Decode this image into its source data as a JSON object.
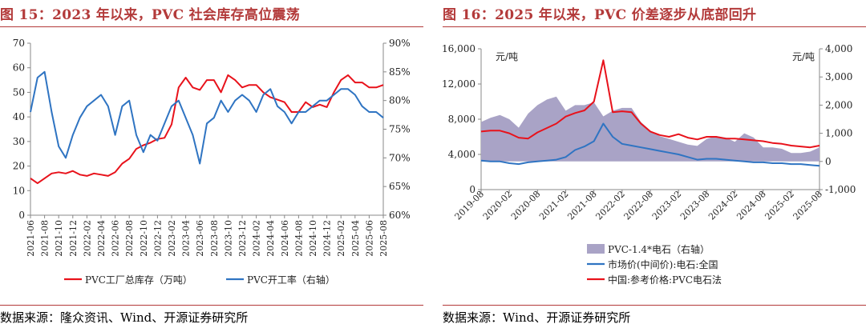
{
  "panels": [
    {
      "title": "图 15：2023 年以来，PVC 社会库存高位震荡",
      "source": "数据来源：隆众资讯、Wind、开源证券研究所"
    },
    {
      "title": "图 16：2025 年以来，PVC 价差逐步从底部回升",
      "source": "数据来源：Wind、开源证券研究所"
    }
  ],
  "colors": {
    "red": "#e8121b",
    "blue": "#2f74c2",
    "area": "#a9a3c6",
    "title": "#b33a3a"
  },
  "chart_data": [
    {
      "type": "line",
      "x_tick_labels": [
        "2021-06",
        "2021-08",
        "2021-10",
        "2021-12",
        "2022-02",
        "2022-04",
        "2022-06",
        "2022-08",
        "2022-10",
        "2022-12",
        "2023-02",
        "2023-04",
        "2023-06",
        "2023-08",
        "2023-10",
        "2023-12",
        "2024-02",
        "2024-04",
        "2024-06",
        "2024-08",
        "2024-10",
        "2024-12",
        "2025-02",
        "2025-04",
        "2025-06",
        "2025-08"
      ],
      "x_start": "2021-06",
      "x_end": "2025-08",
      "ylim_left": [
        0,
        70
      ],
      "y_ticks_left": [
        "0",
        "10",
        "20",
        "30",
        "40",
        "50",
        "60",
        "70"
      ],
      "ylim_right": [
        60,
        90
      ],
      "y_ticks_right": [
        "60%",
        "65%",
        "70%",
        "75%",
        "80%",
        "85%",
        "90%"
      ],
      "grid": false,
      "legend_position": "bottom",
      "series": [
        {
          "name": "PVC工厂总库存（万吨）",
          "axis": "left",
          "color": "#e8121b",
          "points": [
            [
              "2021-06",
              15
            ],
            [
              "2021-07",
              13
            ],
            [
              "2021-08",
              15
            ],
            [
              "2021-09",
              17
            ],
            [
              "2021-10",
              17.5
            ],
            [
              "2021-11",
              17
            ],
            [
              "2021-12",
              18
            ],
            [
              "2022-01",
              16.5
            ],
            [
              "2022-02",
              16
            ],
            [
              "2022-03",
              17
            ],
            [
              "2022-04",
              16.5
            ],
            [
              "2022-05",
              16
            ],
            [
              "2022-06",
              17.5
            ],
            [
              "2022-07",
              21
            ],
            [
              "2022-08",
              23
            ],
            [
              "2022-09",
              27
            ],
            [
              "2022-10",
              28.5
            ],
            [
              "2022-11",
              29.5
            ],
            [
              "2022-12",
              31
            ],
            [
              "2023-01",
              31.5
            ],
            [
              "2023-02",
              37
            ],
            [
              "2023-03",
              52
            ],
            [
              "2023-04",
              56
            ],
            [
              "2023-05",
              52
            ],
            [
              "2023-06",
              51
            ],
            [
              "2023-07",
              55
            ],
            [
              "2023-08",
              55
            ],
            [
              "2023-09",
              50
            ],
            [
              "2023-10",
              57
            ],
            [
              "2023-11",
              55
            ],
            [
              "2023-12",
              52
            ],
            [
              "2024-01",
              53
            ],
            [
              "2024-02",
              53
            ],
            [
              "2024-03",
              50
            ],
            [
              "2024-04",
              48
            ],
            [
              "2024-05",
              47
            ],
            [
              "2024-06",
              46
            ],
            [
              "2024-07",
              42
            ],
            [
              "2024-08",
              42
            ],
            [
              "2024-09",
              46
            ],
            [
              "2024-10",
              44
            ],
            [
              "2024-11",
              45
            ],
            [
              "2024-12",
              44
            ],
            [
              "2025-01",
              50
            ],
            [
              "2025-02",
              55
            ],
            [
              "2025-03",
              57
            ],
            [
              "2025-04",
              54
            ],
            [
              "2025-05",
              54
            ],
            [
              "2025-06",
              52
            ],
            [
              "2025-07",
              52
            ],
            [
              "2025-08",
              53
            ]
          ]
        },
        {
          "name": "PVC开工率（右轴）",
          "axis": "right",
          "color": "#2f74c2",
          "points": [
            [
              "2021-06",
              78
            ],
            [
              "2021-07",
              84
            ],
            [
              "2021-08",
              85
            ],
            [
              "2021-09",
              78
            ],
            [
              "2021-10",
              72
            ],
            [
              "2021-11",
              70
            ],
            [
              "2021-12",
              74
            ],
            [
              "2022-01",
              77
            ],
            [
              "2022-02",
              79
            ],
            [
              "2022-03",
              80
            ],
            [
              "2022-04",
              81
            ],
            [
              "2022-05",
              79
            ],
            [
              "2022-06",
              74
            ],
            [
              "2022-07",
              79
            ],
            [
              "2022-08",
              80
            ],
            [
              "2022-09",
              74
            ],
            [
              "2022-10",
              71
            ],
            [
              "2022-11",
              74
            ],
            [
              "2022-12",
              73
            ],
            [
              "2023-01",
              76
            ],
            [
              "2023-02",
              79
            ],
            [
              "2023-03",
              80
            ],
            [
              "2023-04",
              77
            ],
            [
              "2023-05",
              74
            ],
            [
              "2023-06",
              69
            ],
            [
              "2023-07",
              76
            ],
            [
              "2023-08",
              77
            ],
            [
              "2023-09",
              80
            ],
            [
              "2023-10",
              78
            ],
            [
              "2023-11",
              80
            ],
            [
              "2023-12",
              81
            ],
            [
              "2024-01",
              80
            ],
            [
              "2024-02",
              78
            ],
            [
              "2024-03",
              81
            ],
            [
              "2024-04",
              82
            ],
            [
              "2024-05",
              79
            ],
            [
              "2024-06",
              78
            ],
            [
              "2024-07",
              76
            ],
            [
              "2024-08",
              78
            ],
            [
              "2024-09",
              78
            ],
            [
              "2024-10",
              79
            ],
            [
              "2024-11",
              80
            ],
            [
              "2024-12",
              80
            ],
            [
              "2025-01",
              81
            ],
            [
              "2025-02",
              82
            ],
            [
              "2025-03",
              82
            ],
            [
              "2025-04",
              81
            ],
            [
              "2025-05",
              79
            ],
            [
              "2025-06",
              78
            ],
            [
              "2025-07",
              78
            ],
            [
              "2025-08",
              77
            ]
          ]
        }
      ]
    },
    {
      "type": "area",
      "x_tick_labels": [
        "2019-08",
        "2020-02",
        "2020-08",
        "2021-02",
        "2021-08",
        "2022-02",
        "2022-08",
        "2023-02",
        "2023-08",
        "2024-02",
        "2024-08",
        "2025-02",
        "2025-08"
      ],
      "x_start": "2019-08",
      "x_end": "2025-08",
      "ylim_left": [
        0,
        16000
      ],
      "y_ticks_left": [
        "0",
        "4,000",
        "8,000",
        "12,000",
        "16,000"
      ],
      "ylim_right": [
        -1000,
        4000
      ],
      "y_ticks_right": [
        "-1,000",
        "0",
        "1,000",
        "2,000",
        "3,000",
        "4,000"
      ],
      "unit_left": "元/吨",
      "unit_right": "元/吨",
      "grid": false,
      "legend_position": "bottom",
      "series": [
        {
          "name": "PVC-1.4*电石（右轴）",
          "axis": "right",
          "kind": "area",
          "color": "#a9a3c6",
          "points": [
            [
              "2019-08",
              1400
            ],
            [
              "2019-10",
              1550
            ],
            [
              "2019-12",
              1650
            ],
            [
              "2020-02",
              1500
            ],
            [
              "2020-04",
              1200
            ],
            [
              "2020-06",
              1700
            ],
            [
              "2020-08",
              2000
            ],
            [
              "2020-10",
              2200
            ],
            [
              "2020-12",
              2300
            ],
            [
              "2021-02",
              1800
            ],
            [
              "2021-04",
              2000
            ],
            [
              "2021-06",
              2000
            ],
            [
              "2021-08",
              2100
            ],
            [
              "2021-10",
              1600
            ],
            [
              "2021-12",
              1800
            ],
            [
              "2022-02",
              1900
            ],
            [
              "2022-04",
              1900
            ],
            [
              "2022-06",
              1400
            ],
            [
              "2022-08",
              1100
            ],
            [
              "2022-10",
              900
            ],
            [
              "2022-12",
              800
            ],
            [
              "2023-02",
              700
            ],
            [
              "2023-04",
              600
            ],
            [
              "2023-06",
              550
            ],
            [
              "2023-08",
              800
            ],
            [
              "2023-10",
              900
            ],
            [
              "2023-12",
              850
            ],
            [
              "2024-02",
              700
            ],
            [
              "2024-04",
              1000
            ],
            [
              "2024-06",
              850
            ],
            [
              "2024-08",
              500
            ],
            [
              "2024-10",
              500
            ],
            [
              "2024-12",
              450
            ],
            [
              "2025-02",
              300
            ],
            [
              "2025-04",
              300
            ],
            [
              "2025-06",
              350
            ],
            [
              "2025-08",
              500
            ]
          ]
        },
        {
          "name": "市场价(中间价):电石:全国",
          "axis": "left",
          "kind": "line",
          "color": "#2f74c2",
          "points": [
            [
              "2019-08",
              3300
            ],
            [
              "2019-10",
              3200
            ],
            [
              "2019-12",
              3200
            ],
            [
              "2020-02",
              3000
            ],
            [
              "2020-04",
              2900
            ],
            [
              "2020-06",
              3100
            ],
            [
              "2020-08",
              3200
            ],
            [
              "2020-10",
              3300
            ],
            [
              "2020-12",
              3400
            ],
            [
              "2021-02",
              3700
            ],
            [
              "2021-04",
              4500
            ],
            [
              "2021-06",
              4900
            ],
            [
              "2021-08",
              5500
            ],
            [
              "2021-10",
              7500
            ],
            [
              "2021-12",
              6000
            ],
            [
              "2022-02",
              5200
            ],
            [
              "2022-04",
              5000
            ],
            [
              "2022-06",
              4800
            ],
            [
              "2022-08",
              4600
            ],
            [
              "2022-10",
              4400
            ],
            [
              "2022-12",
              4200
            ],
            [
              "2023-02",
              4000
            ],
            [
              "2023-04",
              3700
            ],
            [
              "2023-06",
              3400
            ],
            [
              "2023-08",
              3500
            ],
            [
              "2023-10",
              3500
            ],
            [
              "2023-12",
              3400
            ],
            [
              "2024-02",
              3300
            ],
            [
              "2024-04",
              3200
            ],
            [
              "2024-06",
              3100
            ],
            [
              "2024-08",
              3100
            ],
            [
              "2024-10",
              3000
            ],
            [
              "2024-12",
              3000
            ],
            [
              "2025-02",
              2900
            ],
            [
              "2025-04",
              2900
            ],
            [
              "2025-06",
              2800
            ],
            [
              "2025-08",
              2700
            ]
          ]
        },
        {
          "name": "中国:参考价格:PVC电石法",
          "axis": "left",
          "kind": "line",
          "color": "#e8121b",
          "points": [
            [
              "2019-08",
              6600
            ],
            [
              "2019-10",
              6700
            ],
            [
              "2019-12",
              6700
            ],
            [
              "2020-02",
              6400
            ],
            [
              "2020-04",
              5900
            ],
            [
              "2020-06",
              5800
            ],
            [
              "2020-08",
              6500
            ],
            [
              "2020-10",
              7000
            ],
            [
              "2020-12",
              7500
            ],
            [
              "2021-02",
              8300
            ],
            [
              "2021-04",
              8700
            ],
            [
              "2021-06",
              9000
            ],
            [
              "2021-08",
              10000
            ],
            [
              "2021-10",
              14700
            ],
            [
              "2021-12",
              8800
            ],
            [
              "2022-02",
              8900
            ],
            [
              "2022-04",
              8800
            ],
            [
              "2022-06",
              7500
            ],
            [
              "2022-08",
              6600
            ],
            [
              "2022-10",
              6200
            ],
            [
              "2022-12",
              6000
            ],
            [
              "2023-02",
              6300
            ],
            [
              "2023-04",
              5900
            ],
            [
              "2023-06",
              5700
            ],
            [
              "2023-08",
              6000
            ],
            [
              "2023-10",
              6000
            ],
            [
              "2023-12",
              5800
            ],
            [
              "2024-02",
              5800
            ],
            [
              "2024-04",
              5700
            ],
            [
              "2024-06",
              5600
            ],
            [
              "2024-08",
              5500
            ],
            [
              "2024-10",
              5300
            ],
            [
              "2024-12",
              5200
            ],
            [
              "2025-02",
              5000
            ],
            [
              "2025-04",
              4900
            ],
            [
              "2025-06",
              4800
            ],
            [
              "2025-08",
              5000
            ]
          ]
        }
      ]
    }
  ]
}
